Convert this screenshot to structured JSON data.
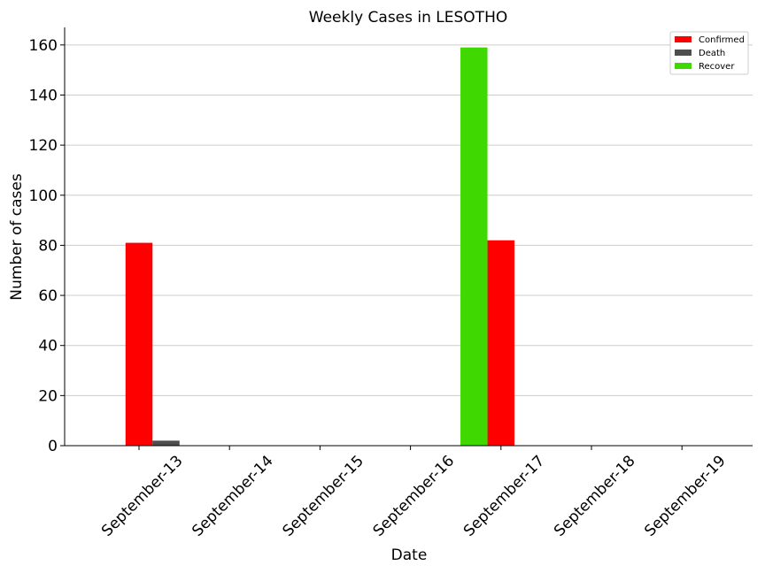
{
  "chart_data": {
    "type": "bar",
    "title": "Weekly Cases in LESOTHO",
    "xlabel": "Date",
    "ylabel": "Number of cases",
    "categories": [
      "September-13",
      "September-14",
      "September-15",
      "September-16",
      "September-17",
      "September-18",
      "September-19"
    ],
    "series": [
      {
        "name": "Confirmed",
        "color": "#ff0000",
        "values": [
          81,
          0,
          0,
          0,
          82,
          0,
          0
        ]
      },
      {
        "name": "Death",
        "color": "#4d4d4d",
        "values": [
          2,
          0,
          0,
          0,
          0,
          0,
          0
        ]
      },
      {
        "name": "Recover",
        "color": "#3fd800",
        "values": [
          0,
          0,
          0,
          0,
          159,
          0,
          0
        ]
      }
    ],
    "ylim": [
      0,
      167
    ],
    "yticks": [
      0,
      20,
      40,
      60,
      80,
      100,
      120,
      140,
      160
    ],
    "grid": "horizontal",
    "legend_position": "top-right"
  }
}
